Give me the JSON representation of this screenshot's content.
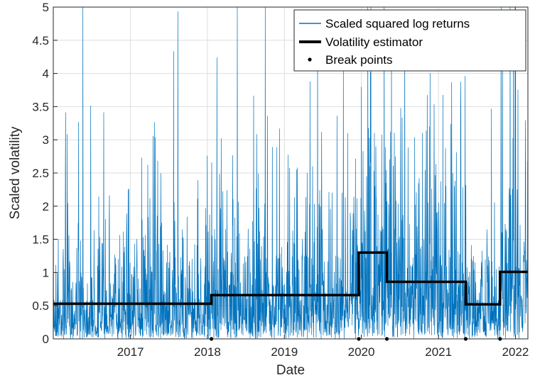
{
  "chart_data": {
    "type": "line",
    "title": "",
    "xlabel": "Date",
    "ylabel": "Scaled volatility",
    "xlim": [
      "2016-01-01",
      "2022-03-01"
    ],
    "ylim": [
      0,
      5
    ],
    "x_tick_labels": [
      "2017",
      "2018",
      "2019",
      "2020",
      "2021",
      "2022"
    ],
    "y_tick_labels": [
      "0",
      "0.5",
      "1",
      "1.5",
      "2",
      "2.5",
      "3",
      "3.5",
      "4",
      "4.5",
      "5"
    ],
    "grid": true,
    "legend_position": "top-right",
    "colors": {
      "returns": "#0072BD",
      "estimator": "#000000",
      "breaks": "#000000"
    },
    "series": [
      {
        "name": "Scaled squared log returns",
        "kind": "line",
        "description_levels": [
          {
            "from": "2016-01-01",
            "to": "2018-01-20",
            "mean_level": 0.53
          },
          {
            "from": "2018-01-20",
            "to": "2019-12-20",
            "mean_level": 0.66
          },
          {
            "from": "2019-12-20",
            "to": "2020-05-01",
            "mean_level": 1.3
          },
          {
            "from": "2020-05-01",
            "to": "2021-05-10",
            "mean_level": 0.86
          },
          {
            "from": "2021-05-10",
            "to": "2021-10-20",
            "mean_level": 0.52
          },
          {
            "from": "2021-10-20",
            "to": "2022-03-01",
            "mean_level": 1.01
          }
        ]
      },
      {
        "name": "Volatility estimator",
        "kind": "step",
        "segments": [
          {
            "from": "2016-01-01",
            "to": "2018-01-20",
            "value": 0.53
          },
          {
            "from": "2018-01-20",
            "to": "2019-12-20",
            "value": 0.66
          },
          {
            "from": "2019-12-20",
            "to": "2020-05-01",
            "value": 1.3
          },
          {
            "from": "2020-05-01",
            "to": "2021-05-10",
            "value": 0.86
          },
          {
            "from": "2021-05-10",
            "to": "2021-10-20",
            "value": 0.52
          },
          {
            "from": "2021-10-20",
            "to": "2022-03-01",
            "value": 1.01
          }
        ]
      },
      {
        "name": "Break points",
        "kind": "scatter",
        "points": [
          {
            "x": "2018-01-20",
            "y": 0
          },
          {
            "x": "2019-12-20",
            "y": 0
          },
          {
            "x": "2020-05-01",
            "y": 0
          },
          {
            "x": "2021-05-10",
            "y": 0
          },
          {
            "x": "2021-10-20",
            "y": 0
          }
        ]
      }
    ]
  }
}
